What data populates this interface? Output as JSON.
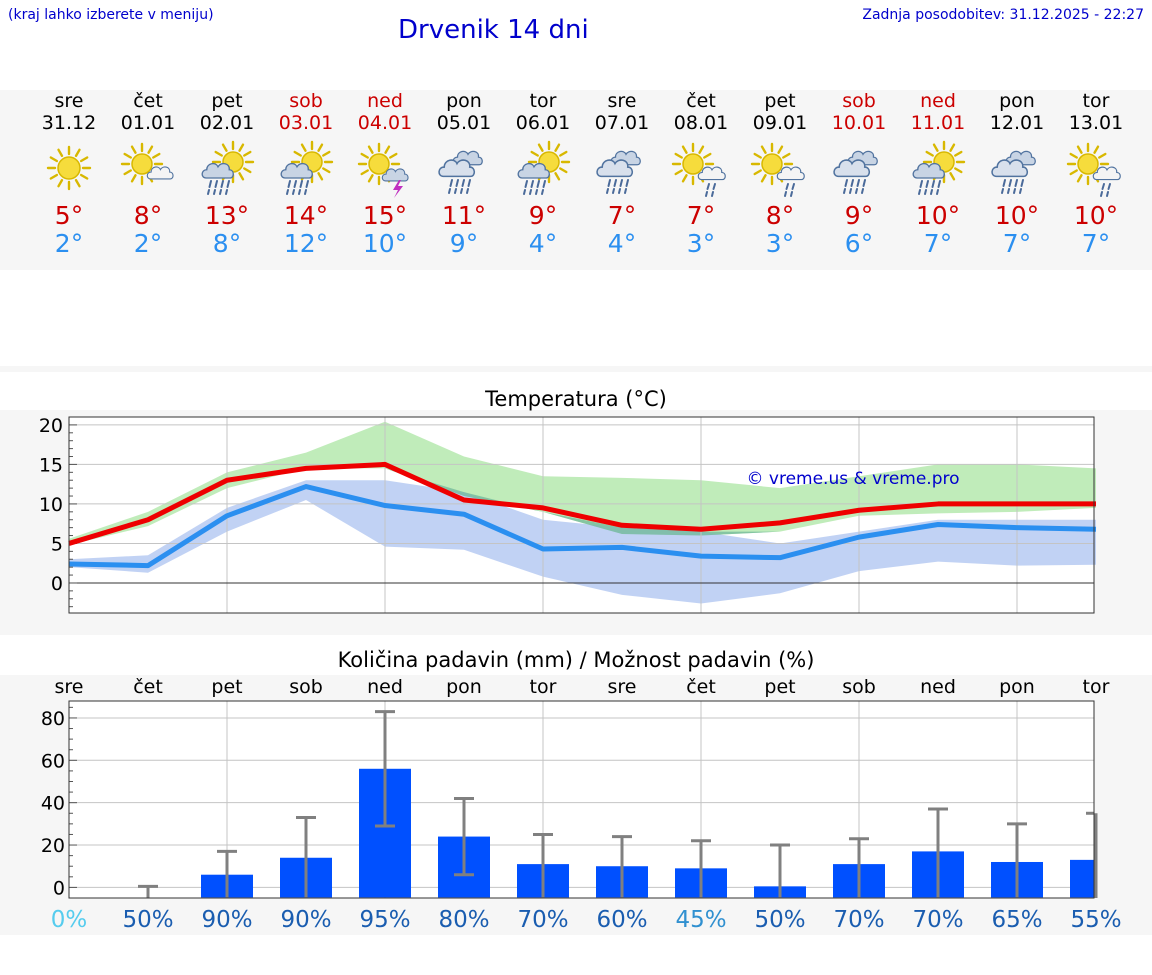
{
  "header": {
    "note": "(kraj lahko izberete v meniju)",
    "title": "Drvenik 14 dni",
    "updated": "Zadnja posodobitev: 31.12.2025 - 22:27"
  },
  "colors": {
    "title_blue": "#0000cc",
    "max_red": "#cc0000",
    "min_blue": "#2b8ff0",
    "bar_blue": "#0050ff",
    "band_green": "#a8e4a0",
    "band_blue": "#a9c0f0",
    "band_overlap": "#7cc4a4"
  },
  "days": [
    {
      "name": "sre",
      "date": "31.12",
      "weekend": false,
      "icon": "sun-icon",
      "tmax": "5°",
      "tmin": "2°"
    },
    {
      "name": "čet",
      "date": "01.01",
      "weekend": false,
      "icon": "sun-cloud-icon",
      "tmax": "8°",
      "tmin": "2°"
    },
    {
      "name": "pet",
      "date": "02.01",
      "weekend": false,
      "icon": "sun-cloud-rain-icon",
      "tmax": "13°",
      "tmin": "8°"
    },
    {
      "name": "sob",
      "date": "03.01",
      "weekend": true,
      "icon": "sun-cloud-rain-icon",
      "tmax": "14°",
      "tmin": "12°"
    },
    {
      "name": "ned",
      "date": "04.01",
      "weekend": true,
      "icon": "sun-thunder-icon",
      "tmax": "15°",
      "tmin": "10°"
    },
    {
      "name": "pon",
      "date": "05.01",
      "weekend": false,
      "icon": "cloud-rain-icon",
      "tmax": "11°",
      "tmin": "9°"
    },
    {
      "name": "tor",
      "date": "06.01",
      "weekend": false,
      "icon": "sun-cloud-rain-icon",
      "tmax": "9°",
      "tmin": "4°"
    },
    {
      "name": "sre",
      "date": "07.01",
      "weekend": false,
      "icon": "cloud-rain-icon",
      "tmax": "7°",
      "tmin": "4°"
    },
    {
      "name": "čet",
      "date": "08.01",
      "weekend": false,
      "icon": "sun-cloud-drizzle-icon",
      "tmax": "7°",
      "tmin": "3°"
    },
    {
      "name": "pet",
      "date": "09.01",
      "weekend": false,
      "icon": "sun-cloud-drizzle-icon",
      "tmax": "8°",
      "tmin": "3°"
    },
    {
      "name": "sob",
      "date": "10.01",
      "weekend": true,
      "icon": "cloud-rain-icon",
      "tmax": "9°",
      "tmin": "6°"
    },
    {
      "name": "ned",
      "date": "11.01",
      "weekend": true,
      "icon": "sun-cloud-rain-icon",
      "tmax": "10°",
      "tmin": "7°"
    },
    {
      "name": "pon",
      "date": "12.01",
      "weekend": false,
      "icon": "cloud-rain-icon",
      "tmax": "10°",
      "tmin": "7°"
    },
    {
      "name": "tor",
      "date": "13.01",
      "weekend": false,
      "icon": "sun-cloud-drizzle-icon",
      "tmax": "10°",
      "tmin": "7°"
    }
  ],
  "chart_data": [
    {
      "type": "line",
      "title": "Temperatura (°C)",
      "watermark": "© vreme.us & vreme.pro",
      "x": [
        0,
        1,
        2,
        3,
        4,
        5,
        6,
        7,
        8,
        9,
        10,
        11,
        12,
        13
      ],
      "ylim": [
        -3.8,
        21
      ],
      "yticks": [
        0,
        5,
        10,
        15,
        20
      ],
      "ytick_labels": [
        "0",
        "5",
        "10",
        "15",
        "20"
      ],
      "grid": true,
      "series": [
        {
          "name": "max",
          "color": "#ee0000",
          "values": [
            5,
            8,
            13,
            14.5,
            15,
            10.5,
            9.5,
            7.3,
            6.8,
            7.6,
            9.2,
            10,
            10,
            10
          ]
        },
        {
          "name": "min",
          "color": "#2b8ff0",
          "values": [
            2.4,
            2.2,
            8.5,
            12.2,
            9.8,
            8.7,
            4.3,
            4.5,
            3.4,
            3.2,
            5.8,
            7.4,
            7,
            6.8
          ]
        }
      ],
      "bands": [
        {
          "name": "max-range",
          "color": "#a8e4a0",
          "upper": [
            5.6,
            9,
            14,
            16.5,
            20.4,
            16,
            13.5,
            13.3,
            13,
            12,
            13.5,
            15,
            15,
            14.5
          ],
          "lower": [
            4.8,
            7.2,
            12,
            14.5,
            14.5,
            11,
            9,
            6.2,
            6,
            6.5,
            8.5,
            8.8,
            9,
            9.5
          ]
        },
        {
          "name": "min-range",
          "color": "#a9c0f0",
          "upper": [
            3,
            3.5,
            9.5,
            13,
            13,
            11.5,
            8,
            7,
            6.5,
            5,
            6.5,
            8,
            8,
            8
          ],
          "lower": [
            2,
            1.3,
            6.5,
            10.5,
            4.6,
            4.2,
            0.8,
            -1.5,
            -2.6,
            -1.3,
            1.5,
            2.7,
            2.2,
            2.3
          ]
        }
      ]
    },
    {
      "type": "bar",
      "title": "Količina padavin (mm) / Možnost padavin (%)",
      "categories": [
        "sre",
        "čet",
        "pet",
        "sob",
        "ned",
        "pon",
        "tor",
        "sre",
        "čet",
        "pet",
        "sob",
        "ned",
        "pon",
        "tor"
      ],
      "values": [
        0,
        0,
        6,
        14,
        56,
        24,
        11,
        10,
        9,
        0.5,
        11,
        17,
        12,
        13
      ],
      "err_low": [
        0,
        0,
        0,
        0,
        29,
        6,
        0,
        0,
        0,
        0,
        0,
        0,
        0,
        0
      ],
      "err_high": [
        0,
        0.5,
        17,
        33,
        83,
        42,
        25,
        24,
        22,
        20,
        23,
        37,
        30,
        35
      ],
      "ylim": [
        -5,
        88
      ],
      "yticks": [
        0,
        20,
        40,
        60,
        80
      ],
      "ytick_labels": [
        "0",
        "20",
        "40",
        "60",
        "80"
      ],
      "probabilities": [
        {
          "label": "0%",
          "value": 0
        },
        {
          "label": "50%",
          "value": 50
        },
        {
          "label": "90%",
          "value": 90
        },
        {
          "label": "90%",
          "value": 90
        },
        {
          "label": "95%",
          "value": 95
        },
        {
          "label": "80%",
          "value": 80
        },
        {
          "label": "70%",
          "value": 70
        },
        {
          "label": "60%",
          "value": 60
        },
        {
          "label": "45%",
          "value": 45
        },
        {
          "label": "50%",
          "value": 50
        },
        {
          "label": "70%",
          "value": 70
        },
        {
          "label": "70%",
          "value": 70
        },
        {
          "label": "65%",
          "value": 65
        },
        {
          "label": "55%",
          "value": 55
        }
      ]
    }
  ]
}
